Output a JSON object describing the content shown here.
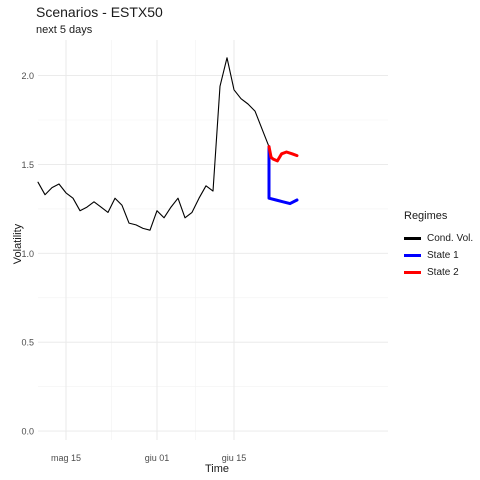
{
  "chart_data": {
    "type": "line",
    "title": "Scenarios - ESTX50",
    "subtitle": "next 5 days",
    "xlabel": "Time",
    "ylabel": "Volatility",
    "ylim": [
      -0.05,
      2.2
    ],
    "xlim": [
      -4,
      46
    ],
    "yticks": [
      0.0,
      0.5,
      1.0,
      1.5,
      2.0
    ],
    "ytick_labels": [
      "0.0",
      "0.5",
      "1.0",
      "1.5",
      "2.0"
    ],
    "xticks": [
      0,
      13,
      24
    ],
    "xtick_labels": [
      "mag 15",
      "giu 01",
      "giu 15"
    ],
    "legend": {
      "title": "Regimes",
      "position": "right",
      "entries": [
        {
          "label": "Cond. Vol.",
          "color": "#000000"
        },
        {
          "label": "State 1",
          "color": "#0000ff"
        },
        {
          "label": "State 2",
          "color": "#ff0000"
        }
      ]
    },
    "series": [
      {
        "name": "Cond. Vol.",
        "color": "#000000",
        "x": [
          -4,
          -3,
          -2,
          -1,
          0,
          1,
          2,
          3,
          4,
          5,
          6,
          7,
          8,
          9,
          10,
          11,
          12,
          13,
          14,
          15,
          16,
          17,
          18,
          19,
          20,
          21,
          22,
          23,
          24,
          25,
          26,
          27,
          28,
          29
        ],
        "values": [
          1.4,
          1.33,
          1.37,
          1.39,
          1.34,
          1.31,
          1.24,
          1.26,
          1.29,
          1.26,
          1.23,
          1.31,
          1.27,
          1.17,
          1.16,
          1.14,
          1.13,
          1.24,
          1.2,
          1.26,
          1.31,
          1.2,
          1.23,
          1.31,
          1.38,
          1.35,
          1.94,
          2.1,
          1.92,
          1.87,
          1.84,
          1.8,
          1.7,
          1.6
        ]
      },
      {
        "name": "State 1",
        "color": "#0000ff",
        "x": [
          29,
          29,
          30,
          31,
          32,
          33
        ],
        "values": [
          1.6,
          1.31,
          1.3,
          1.29,
          1.28,
          1.3
        ]
      },
      {
        "name": "State 2",
        "color": "#ff0000",
        "x": [
          29,
          29.3,
          29.6,
          30.2,
          30.8,
          31.5,
          32.3,
          33
        ],
        "values": [
          1.6,
          1.54,
          1.53,
          1.52,
          1.56,
          1.57,
          1.56,
          1.55
        ]
      }
    ]
  }
}
